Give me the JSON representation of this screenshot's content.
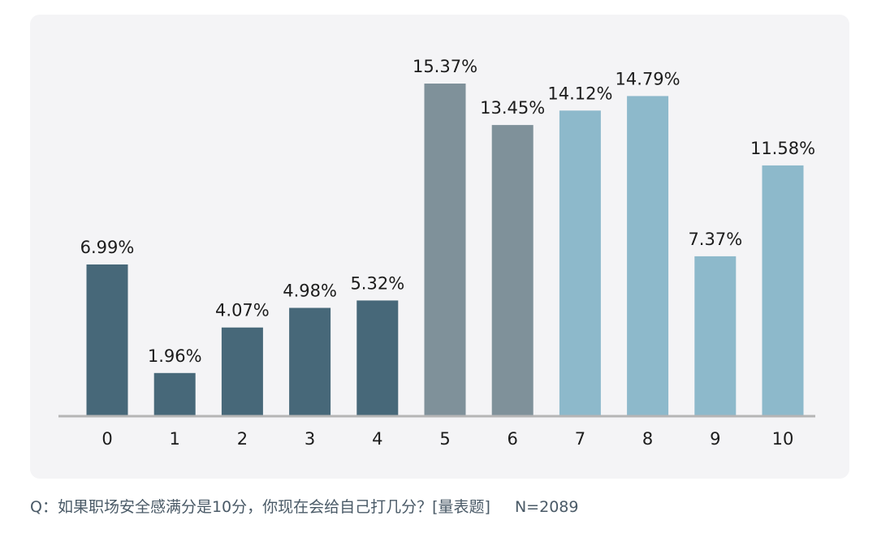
{
  "chart_data": {
    "type": "bar",
    "title": "",
    "xlabel": "",
    "ylabel": "",
    "ylim": [
      0,
      16
    ],
    "grid": false,
    "legend": "none",
    "categories": [
      "0",
      "1",
      "2",
      "3",
      "4",
      "5",
      "6",
      "7",
      "8",
      "9",
      "10"
    ],
    "values": [
      6.99,
      1.96,
      4.07,
      4.98,
      5.32,
      15.37,
      13.45,
      14.12,
      14.79,
      7.37,
      11.58
    ],
    "value_labels": [
      "6.99%",
      "1.96%",
      "4.07%",
      "4.98%",
      "5.32%",
      "15.37%",
      "13.45%",
      "14.12%",
      "14.79%",
      "7.37%",
      "11.58%"
    ],
    "bar_colors": [
      "#476879",
      "#476879",
      "#476879",
      "#476879",
      "#476879",
      "#7f919a",
      "#7f919a",
      "#8db9cb",
      "#8db9cb",
      "#8db9cb",
      "#8db9cb"
    ],
    "axis_color": "#b5b5b5",
    "panel_color": "#f4f4f6"
  },
  "caption": {
    "question": "Q：如果职场安全感满分是10分，你现在会给自己打几分？[量表题]",
    "sample": "N=2089"
  }
}
